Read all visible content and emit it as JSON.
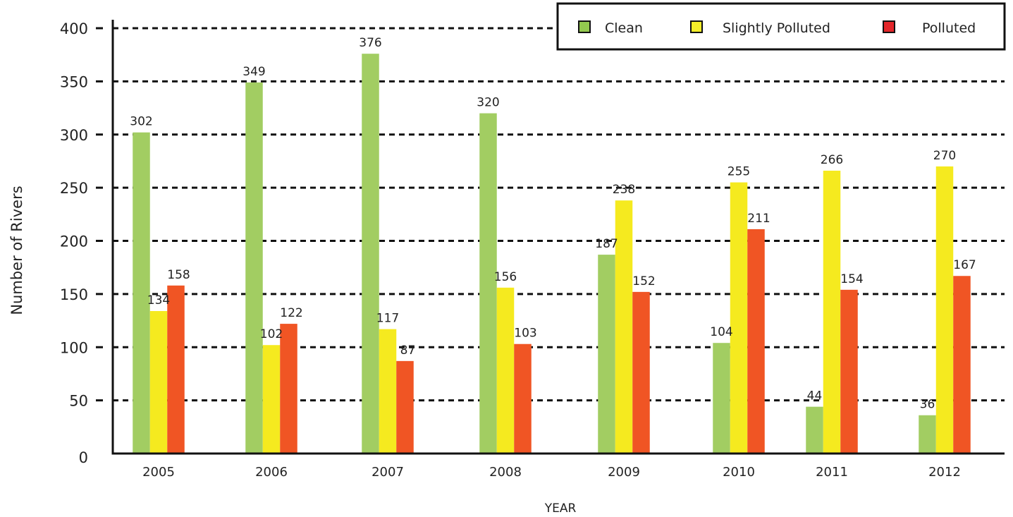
{
  "chart_data": {
    "type": "bar",
    "categories": [
      "2005",
      "2006",
      "2007",
      "2008",
      "2009",
      "2010",
      "2011",
      "2012"
    ],
    "series": [
      {
        "name": "Clean",
        "color": "#a2cd62",
        "values": [
          302,
          349,
          376,
          320,
          187,
          104,
          44,
          36
        ]
      },
      {
        "name": "Slightly Polluted",
        "color": "#f5ea1f",
        "values": [
          134,
          102,
          117,
          156,
          238,
          255,
          266,
          270
        ]
      },
      {
        "name": "Polluted",
        "color": "#f05524",
        "values": [
          158,
          122,
          87,
          103,
          152,
          211,
          154,
          167
        ]
      }
    ],
    "legend_colors": [
      "#93c94f",
      "#f5ef2a",
      "#e3262a"
    ],
    "xlabel": "YEAR",
    "ylabel": "Number of Rivers",
    "ylim": [
      0,
      400
    ],
    "yticks": [
      "0",
      "50",
      "100",
      "150",
      "200",
      "250",
      "300",
      "350",
      "400"
    ],
    "grid": true,
    "legend_position": "top-right"
  }
}
